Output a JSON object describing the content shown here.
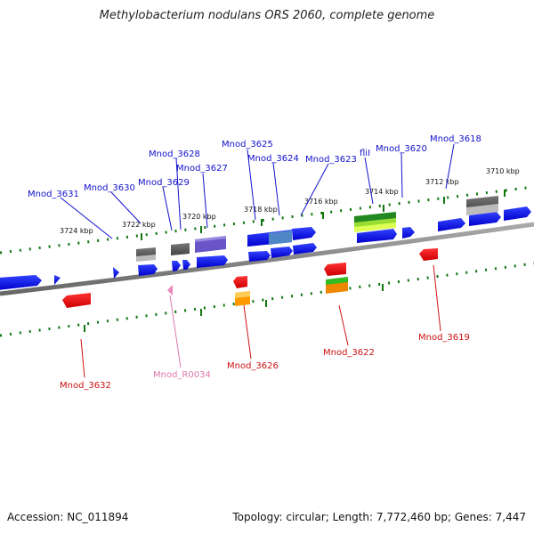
{
  "title": "Methylobacterium nodulans ORS 2060, complete genome",
  "footer": {
    "accession": "Accession: NC_011894",
    "summary": "Topology: circular; Length: 7,772,460 bp; Genes: 7,447"
  },
  "scale_labels": [
    "3710 kbp",
    "3712 kbp",
    "3714 kbp",
    "3716 kbp",
    "3718 kbp",
    "3720 kbp",
    "3722 kbp",
    "3724 kbp"
  ],
  "gene_labels_top": [
    "Mnod_3631",
    "Mnod_3630",
    "Mnod_3629",
    "Mnod_3628",
    "Mnod_3627",
    "Mnod_3625",
    "Mnod_3624",
    "Mnod_3623",
    "fliI",
    "Mnod_3620",
    "Mnod_3618"
  ],
  "gene_labels_bottom": [
    "Mnod_3632",
    "Mnod_R0034",
    "Mnod_3626",
    "Mnod_3622",
    "Mnod_3619"
  ],
  "colors": {
    "forward_gene": "#1111ee",
    "reverse_gene": "#ee1111",
    "rna_gene": "#ee88bb",
    "top_label": "#1111cc",
    "bottom_label": "#cc1111",
    "rna_label": "#dd77aa",
    "tick": "#117711",
    "backbone": "#888888"
  }
}
